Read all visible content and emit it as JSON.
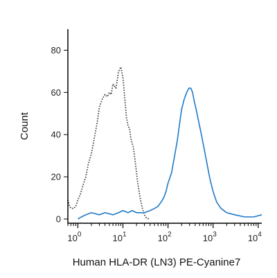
{
  "chart_data": {
    "type": "line",
    "xlabel": "Human HLA-DR (LN3) PE-Cyanine7",
    "ylabel": "Count",
    "x_scale": "log",
    "xlim": [
      0.6,
      12000
    ],
    "ylim": [
      -2,
      90
    ],
    "y_ticks": [
      {
        "value": 0,
        "label": "0"
      },
      {
        "value": 20,
        "label": "20"
      },
      {
        "value": 40,
        "label": "40"
      },
      {
        "value": 60,
        "label": "60"
      },
      {
        "value": 80,
        "label": "80"
      }
    ],
    "x_ticks": [
      {
        "value": 1,
        "label": "10",
        "exp": "0"
      },
      {
        "value": 10,
        "label": "10",
        "exp": "1"
      },
      {
        "value": 100,
        "label": "10",
        "exp": "2"
      },
      {
        "value": 1000,
        "label": "10",
        "exp": "3"
      },
      {
        "value": 10000,
        "label": "10",
        "exp": "4"
      }
    ],
    "grid": false,
    "legend": "none",
    "series": [
      {
        "style": "dotted",
        "color": "#444444",
        "x": [
          0.6,
          0.65,
          0.72,
          0.8,
          0.9,
          1.0,
          1.15,
          1.3,
          1.5,
          1.7,
          2.0,
          2.3,
          2.7,
          3.0,
          3.5,
          4.0,
          4.5,
          5.0,
          5.5,
          6.0,
          6.5,
          7.0,
          7.5,
          8.0,
          9.0,
          10.0,
          11.0,
          12.0,
          13.0,
          14.0,
          15.0,
          17.0,
          19.0,
          21.0,
          24.0,
          27.0,
          30.0,
          33.0,
          36.0,
          40.0
        ],
        "y": [
          9,
          6,
          5,
          5,
          6,
          9,
          12,
          16,
          20,
          26,
          31,
          38,
          46,
          53,
          57,
          59,
          58,
          60,
          59,
          64,
          63,
          62,
          66,
          70,
          72,
          67,
          57,
          48,
          44,
          43,
          38,
          34,
          26,
          18,
          10,
          5,
          2,
          0.5,
          0.2,
          0
        ]
      },
      {
        "style": "solid",
        "color": "#1f78c8",
        "x": [
          1.0,
          1.2,
          1.5,
          2.0,
          3.0,
          4.0,
          6.0,
          8.0,
          10.0,
          13.0,
          16.0,
          20.0,
          25.0,
          30.0,
          40.0,
          50.0,
          60.0,
          70.0,
          80.0,
          90.0,
          100.0,
          120.0,
          140.0,
          160.0,
          180.0,
          200.0,
          230.0,
          260.0,
          290.0,
          320.0,
          350.0,
          380.0,
          420.0,
          480.0,
          550.0,
          650.0,
          750.0,
          850.0,
          1000.0,
          1200.0,
          1500.0,
          2000.0,
          3000.0,
          5000.0,
          8000.0,
          12000.0
        ],
        "y": [
          0,
          1,
          2,
          3,
          2,
          3,
          2,
          3,
          4,
          3,
          4,
          3,
          3,
          3,
          4,
          5,
          6,
          8,
          10,
          13,
          17,
          22,
          30,
          37,
          45,
          52,
          57,
          60,
          62,
          62,
          60,
          56,
          52,
          46,
          40,
          32,
          25,
          19,
          13,
          8,
          5,
          3,
          2,
          1,
          1,
          2
        ]
      }
    ]
  }
}
